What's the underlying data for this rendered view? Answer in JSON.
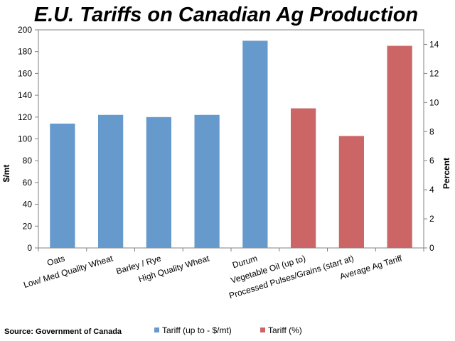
{
  "chart_data": {
    "type": "bar",
    "title": "E.U. Tariffs on Canadian Ag Production",
    "source": "Source: Government of Canada",
    "categories": [
      "Oats",
      "Low/ Med Quality Wheat",
      "Barley / Rye",
      "High Quality Wheat",
      "Durum",
      "Vegetable Oil (up to)",
      "Processed Pulses/Grains (start at)",
      "Average Ag Tariff"
    ],
    "series": [
      {
        "name": "Tariff (up to - $/mt)",
        "axis": "left",
        "color": "#6699cc",
        "values": [
          114,
          122,
          120,
          122,
          190,
          null,
          null,
          null
        ]
      },
      {
        "name": "Tariff (%)",
        "axis": "right",
        "color": "#cc6666",
        "values": [
          null,
          null,
          null,
          null,
          null,
          9.6,
          7.7,
          13.9
        ]
      }
    ],
    "ylabel": "$/mt",
    "ylim": [
      0,
      200
    ],
    "yticks": [
      "0",
      "20",
      "40",
      "60",
      "80",
      "100",
      "120",
      "140",
      "160",
      "180",
      "200"
    ],
    "y2label": "Percent",
    "y2lim": [
      0,
      15
    ],
    "y2ticks": [
      "0",
      "2",
      "4",
      "6",
      "8",
      "10",
      "12",
      "14"
    ],
    "grid": false,
    "legend": "bottom"
  }
}
